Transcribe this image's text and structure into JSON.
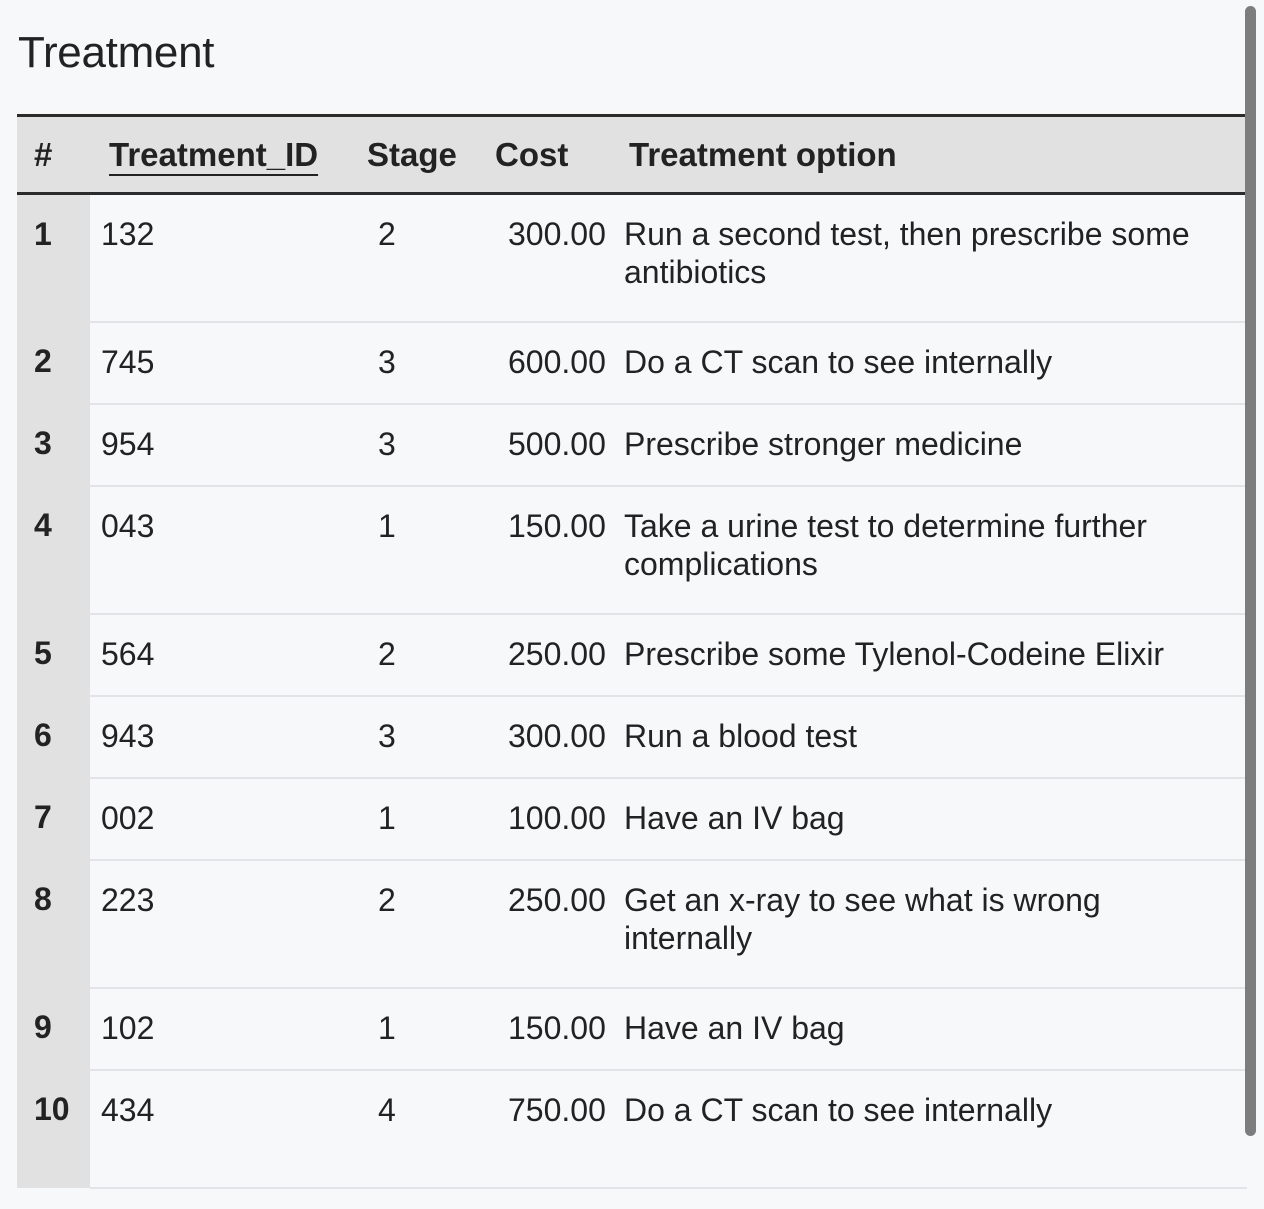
{
  "title": "Treatment",
  "table": {
    "headers": {
      "num": "#",
      "id": "Treatment_ID",
      "stage": "Stage",
      "cost": "Cost",
      "option": "Treatment option"
    },
    "rows": [
      {
        "num": "1",
        "id": "132",
        "stage": "2",
        "cost": "300.00",
        "option": "Run a second test, then prescribe some antibiotics"
      },
      {
        "num": "2",
        "id": "745",
        "stage": "3",
        "cost": "600.00",
        "option": "Do a CT scan to see internally"
      },
      {
        "num": "3",
        "id": "954",
        "stage": "3",
        "cost": "500.00",
        "option": "Prescribe stronger medicine"
      },
      {
        "num": "4",
        "id": "043",
        "stage": "1",
        "cost": "150.00",
        "option": "Take a urine test to determine further complications"
      },
      {
        "num": "5",
        "id": "564",
        "stage": "2",
        "cost": "250.00",
        "option": "Prescribe some Tylenol-Codeine Elixir"
      },
      {
        "num": "6",
        "id": "943",
        "stage": "3",
        "cost": "300.00",
        "option": "Run a blood test"
      },
      {
        "num": "7",
        "id": "002",
        "stage": "1",
        "cost": "100.00",
        "option": "Have an IV bag"
      },
      {
        "num": "8",
        "id": "223",
        "stage": "2",
        "cost": "250.00",
        "option": "Get an x-ray to see what is wrong internally"
      },
      {
        "num": "9",
        "id": "102",
        "stage": "1",
        "cost": "150.00",
        "option": "Have an IV bag"
      },
      {
        "num": "10",
        "id": "434",
        "stage": "4",
        "cost": "750.00",
        "option": "Do a CT scan to see internally"
      }
    ]
  }
}
